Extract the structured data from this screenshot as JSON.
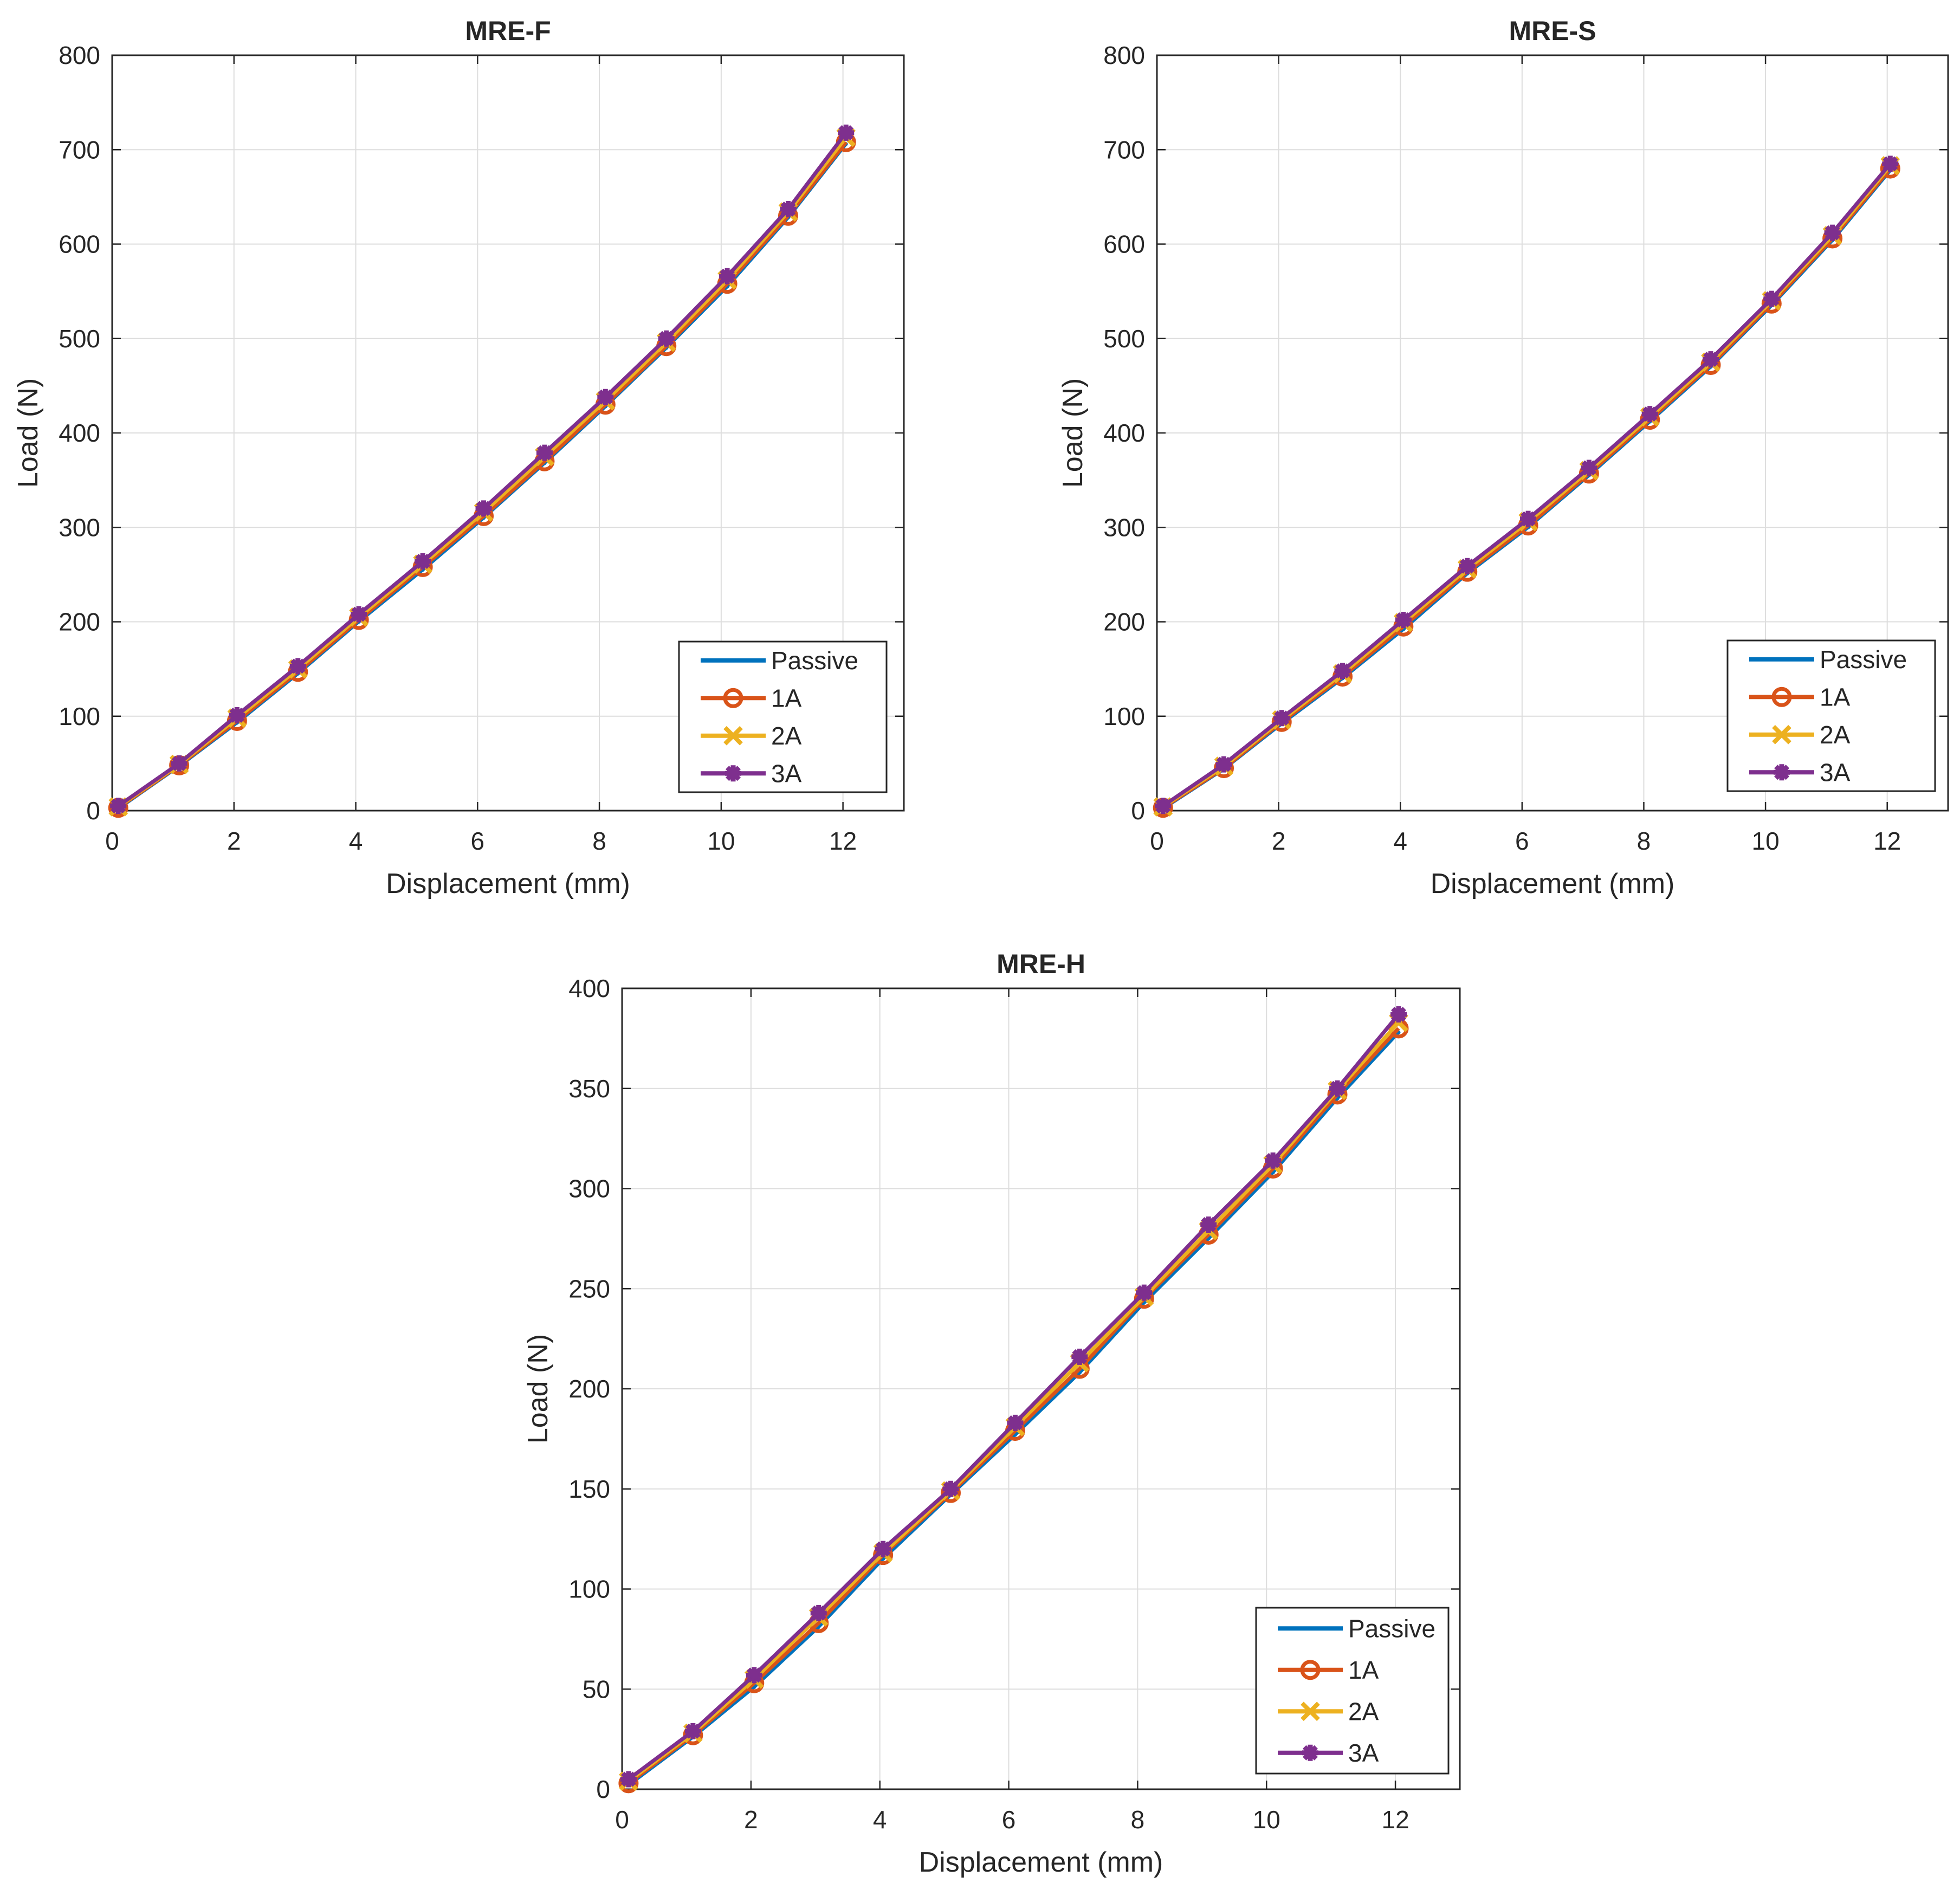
{
  "figure": {
    "description_title": "Load vs displacement for MRE-F, MRE-S and MRE-H"
  },
  "colors": {
    "passive": "#0072BD",
    "one_a": "#D95319",
    "two_a": "#EDB120",
    "three_a": "#7E2F8E",
    "grid": "#dddddd",
    "axis": "#262626"
  },
  "chart_data": [
    {
      "type": "line",
      "title": "MRE-F",
      "xlabel": "Displacement (mm)",
      "ylabel": "Load (N)",
      "xlim": [
        0,
        13
      ],
      "ylim": [
        0,
        800
      ],
      "xticks": [
        "0",
        "2",
        "4",
        "6",
        "8",
        "10",
        "12"
      ],
      "yticks": [
        "0",
        "100",
        "200",
        "300",
        "400",
        "500",
        "600",
        "700",
        "800"
      ],
      "grid": true,
      "legend_position": "bottom-right",
      "x": [
        0.1,
        1.1,
        2.05,
        3.05,
        4.05,
        5.1,
        6.1,
        7.1,
        8.1,
        9.1,
        10.1,
        11.1,
        12.05
      ],
      "series": [
        {
          "name": "Passive",
          "marker": "dot",
          "values": [
            2,
            47,
            93,
            145,
            200,
            255,
            310,
            368,
            428,
            490,
            555,
            628,
            706
          ]
        },
        {
          "name": "1A",
          "marker": "circle",
          "values": [
            3,
            48,
            95,
            147,
            202,
            258,
            312,
            370,
            430,
            492,
            558,
            630,
            708
          ]
        },
        {
          "name": "2A",
          "marker": "x",
          "values": [
            4,
            49,
            98,
            150,
            205,
            261,
            316,
            375,
            434,
            496,
            562,
            634,
            713
          ]
        },
        {
          "name": "3A",
          "marker": "asterisk",
          "values": [
            5,
            50,
            101,
            153,
            208,
            264,
            320,
            379,
            438,
            500,
            566,
            637,
            718
          ]
        }
      ]
    },
    {
      "type": "line",
      "title": "MRE-S",
      "xlabel": "Displacement (mm)",
      "ylabel": "Load (N)",
      "xlim": [
        0,
        13
      ],
      "ylim": [
        0,
        800
      ],
      "xticks": [
        "0",
        "2",
        "4",
        "6",
        "8",
        "10",
        "12"
      ],
      "yticks": [
        "0",
        "100",
        "200",
        "300",
        "400",
        "500",
        "600",
        "700",
        "800"
      ],
      "grid": true,
      "legend_position": "bottom-right",
      "x": [
        0.1,
        1.1,
        2.05,
        3.05,
        4.05,
        5.1,
        6.1,
        7.1,
        8.1,
        9.1,
        10.1,
        11.1,
        12.05
      ],
      "series": [
        {
          "name": "Passive",
          "marker": "dot",
          "values": [
            2,
            44,
            92,
            140,
            192,
            251,
            300,
            355,
            412,
            470,
            535,
            604,
            678
          ]
        },
        {
          "name": "1A",
          "marker": "circle",
          "values": [
            3,
            45,
            94,
            142,
            195,
            253,
            302,
            357,
            414,
            472,
            537,
            606,
            680
          ]
        },
        {
          "name": "2A",
          "marker": "x",
          "values": [
            4,
            47,
            96,
            145,
            199,
            256,
            306,
            360,
            417,
            475,
            540,
            609,
            683
          ]
        },
        {
          "name": "3A",
          "marker": "asterisk",
          "values": [
            5,
            49,
            98,
            148,
            202,
            259,
            309,
            363,
            420,
            478,
            542,
            612,
            685
          ]
        }
      ]
    },
    {
      "type": "line",
      "title": "MRE-H",
      "xlabel": "Displacement (mm)",
      "ylabel": "Load (N)",
      "xlim": [
        0,
        13
      ],
      "ylim": [
        0,
        400
      ],
      "xticks": [
        "0",
        "2",
        "4",
        "6",
        "8",
        "10",
        "12"
      ],
      "yticks": [
        "0",
        "50",
        "100",
        "150",
        "200",
        "250",
        "300",
        "350",
        "400"
      ],
      "grid": true,
      "legend_position": "bottom-right",
      "x": [
        0.1,
        1.1,
        2.05,
        3.05,
        4.05,
        5.1,
        6.1,
        7.1,
        8.1,
        9.1,
        10.1,
        11.1,
        12.05
      ],
      "series": [
        {
          "name": "Passive",
          "marker": "dot",
          "values": [
            2,
            26,
            51,
            81,
            115,
            147,
            177,
            208,
            243,
            275,
            308,
            345,
            378
          ]
        },
        {
          "name": "1A",
          "marker": "circle",
          "values": [
            3,
            27,
            53,
            83,
            117,
            148,
            179,
            210,
            245,
            277,
            310,
            347,
            380
          ]
        },
        {
          "name": "2A",
          "marker": "x",
          "values": [
            4,
            28,
            55,
            86,
            118,
            149,
            181,
            213,
            246,
            279,
            312,
            349,
            383
          ]
        },
        {
          "name": "3A",
          "marker": "asterisk",
          "values": [
            5,
            29,
            57,
            88,
            120,
            150,
            183,
            216,
            248,
            282,
            314,
            350,
            387
          ]
        }
      ]
    }
  ]
}
